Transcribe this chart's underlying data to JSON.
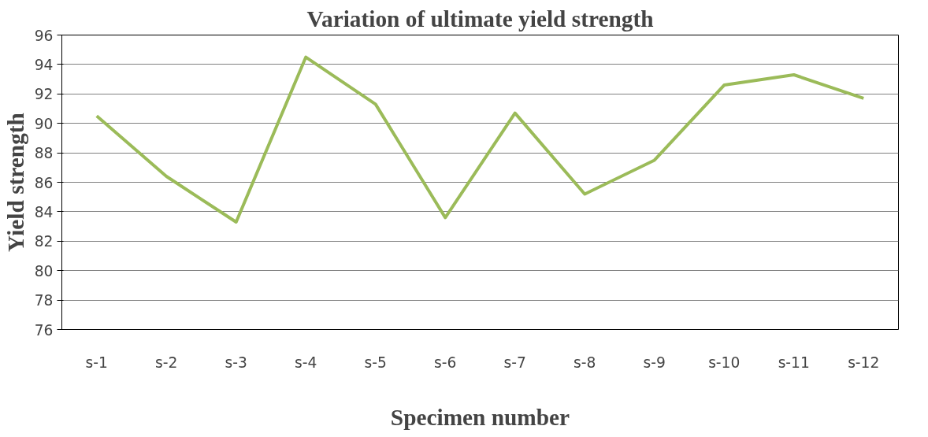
{
  "chart_data": {
    "type": "line",
    "title": "Variation of ultimate yield strength",
    "xlabel": "Specimen number",
    "ylabel": "Yield strength",
    "categories": [
      "s-1",
      "s-2",
      "s-3",
      "s-4",
      "s-5",
      "s-6",
      "s-7",
      "s-8",
      "s-9",
      "s-10",
      "s-11",
      "s-12"
    ],
    "series": [
      {
        "color": "#9bbb59",
        "values": [
          90.5,
          86.4,
          83.3,
          94.5,
          91.3,
          83.6,
          90.7,
          85.2,
          87.5,
          92.6,
          93.3,
          91.7
        ]
      }
    ],
    "ylim": [
      76,
      96
    ],
    "yticks": [
      76,
      78,
      80,
      82,
      84,
      86,
      88,
      90,
      92,
      94,
      96
    ],
    "grid": "y",
    "marker": "none",
    "line_style": "solid"
  }
}
